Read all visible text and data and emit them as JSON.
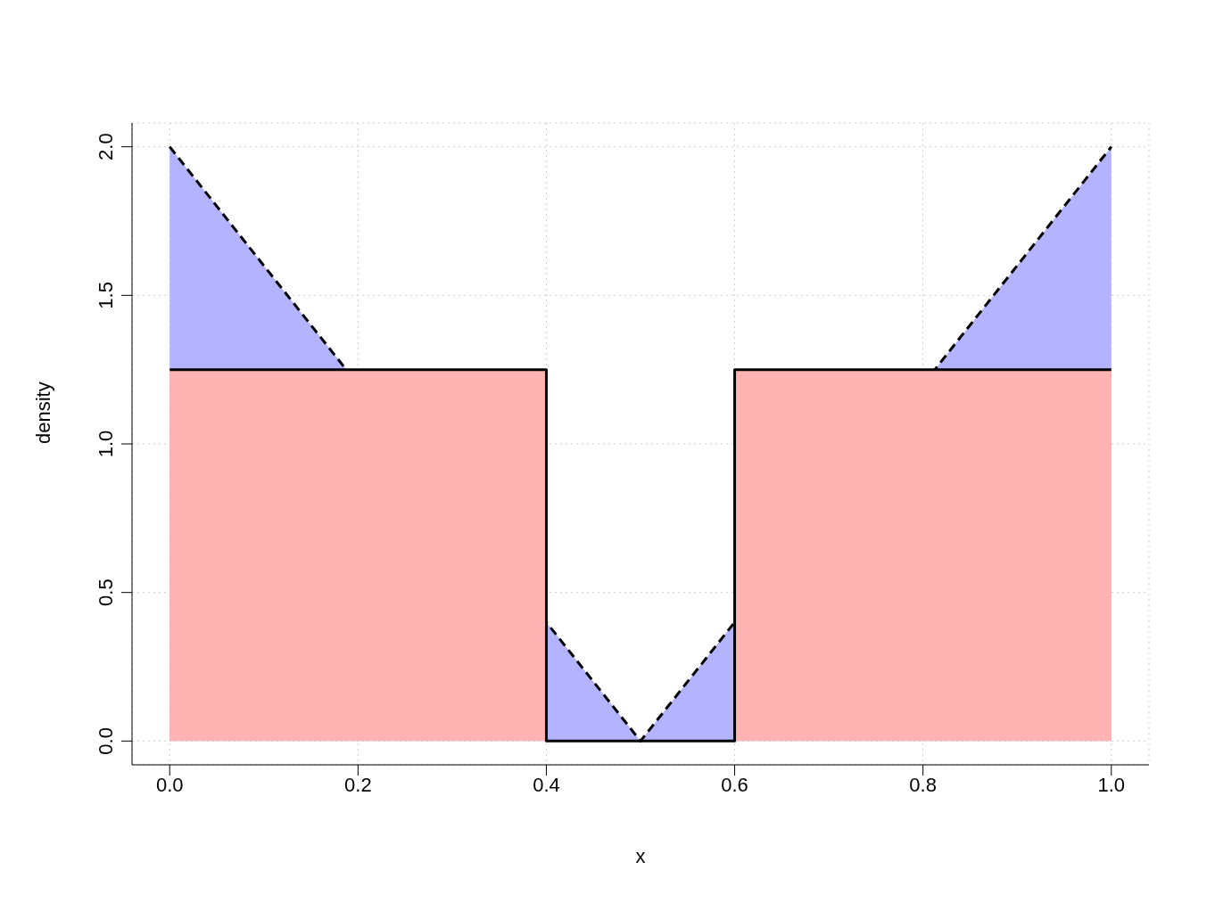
{
  "chart_data": {
    "type": "area",
    "xlabel": "x",
    "ylabel": "density",
    "xlim": [
      -0.04,
      1.04
    ],
    "ylim": [
      -0.08,
      2.08
    ],
    "xticks": [
      {
        "value": 0,
        "label": "0.0"
      },
      {
        "value": 0.2,
        "label": "0.2"
      },
      {
        "value": 0.4,
        "label": "0.4"
      },
      {
        "value": 0.6,
        "label": "0.6"
      },
      {
        "value": 0.8,
        "label": "0.8"
      },
      {
        "value": 1,
        "label": "1.0"
      }
    ],
    "yticks": [
      {
        "value": 0,
        "label": "0.0"
      },
      {
        "value": 0.5,
        "label": "0.5"
      },
      {
        "value": 1,
        "label": "1.0"
      },
      {
        "value": 1.5,
        "label": "1.5"
      },
      {
        "value": 2,
        "label": "2.0"
      }
    ],
    "grid": true,
    "legend": false,
    "series": [
      {
        "color": "#b3b3ff",
        "line_style": "dashed",
        "x": [
          0,
          0.5,
          1
        ],
        "values": [
          2,
          0,
          2
        ]
      },
      {
        "color": "#ffb3b3",
        "line_style": "solid",
        "x": [
          0,
          0.4,
          0.4,
          0.6,
          0.6,
          1
        ],
        "values": [
          1.25,
          1.25,
          0,
          0,
          1.25,
          1.25
        ]
      }
    ]
  }
}
